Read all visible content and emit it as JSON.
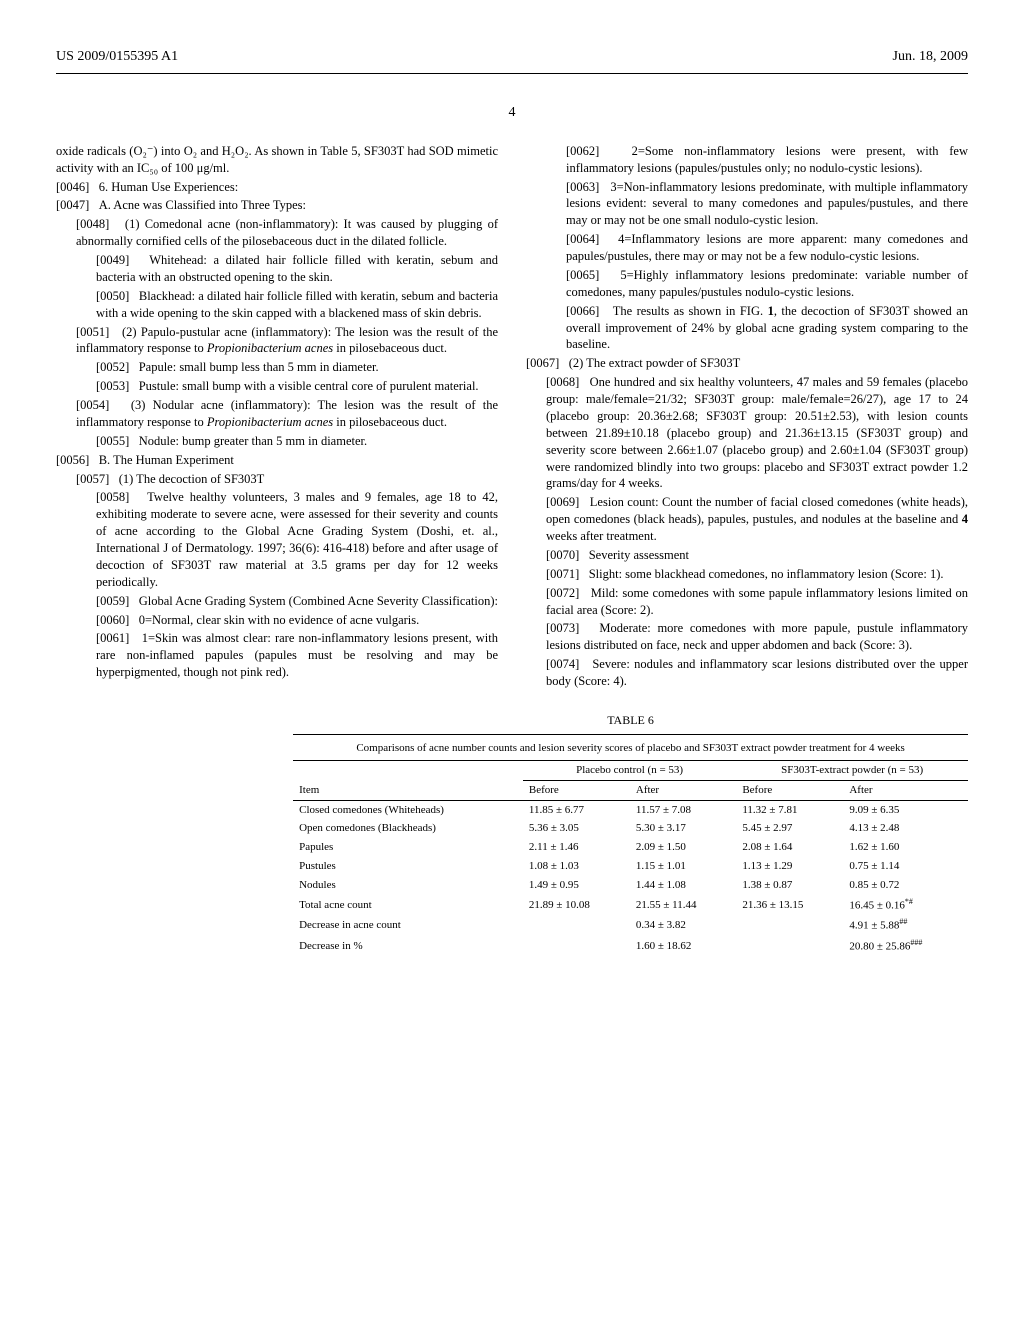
{
  "header": {
    "left": "US 2009/0155395 A1",
    "right": "Jun. 18, 2009"
  },
  "page_number": "4",
  "left_column": {
    "intro": "oxide radicals (O₂⁻) into O₂ and H₂O₂. As shown in Table 5, SF303T had SOD mimetic activity with an IC₅₀ of 100 μg/ml.",
    "p0046": "6. Human Use Experiences:",
    "p0047": "A. Acne was Classified into Three Types:",
    "p0048": "(1) Comedonal acne (non-inflammatory): It was caused by plugging of abnormally cornified cells of the pilosebaceous duct in the dilated follicle.",
    "p0049": "Whitehead: a dilated hair follicle filled with keratin, sebum and bacteria with an obstructed opening to the skin.",
    "p0050": "Blackhead: a dilated hair follicle filled with keratin, sebum and bacteria with a wide opening to the skin capped with a blackened mass of skin debris.",
    "p0051": "(2) Papulo-pustular acne (inflammatory): The lesion was the result of the inflammatory response to Propionibacterium acnes in pilosebaceous duct.",
    "p0052": "Papule: small bump less than 5 mm in diameter.",
    "p0053": "Pustule: small bump with a visible central core of purulent material.",
    "p0054": "(3) Nodular acne (inflammatory): The lesion was the result of the inflammatory response to Propionibacterium acnes in pilosebaceous duct.",
    "p0055": "Nodule: bump greater than 5 mm in diameter.",
    "p0056": "B. The Human Experiment",
    "p0057": "(1) The decoction of SF303T",
    "p0058": "Twelve healthy volunteers, 3 males and 9 females, age 18 to 42, exhibiting moderate to severe acne, were assessed for their severity and counts of acne according to the Global Acne Grading System (Doshi, et. al., International J of Dermatology. 1997; 36(6): 416-418) before and after usage of decoction of SF303T raw material at 3.5 grams per day for 12 weeks periodically.",
    "p0059": "Global Acne Grading System (Combined Acne Severity Classification):",
    "p0060": "0=Normal, clear skin with no evidence of acne vulgaris.",
    "p0061": "1=Skin was almost clear: rare non-inflammatory lesions present, with rare non-inflamed papules (papules must be resolving and may be hyperpigmented, though not pink red)."
  },
  "right_column": {
    "p0062": "2=Some non-inflammatory lesions were present, with few inflammatory lesions (papules/pustules only; no nodulo-cystic lesions).",
    "p0063": "3=Non-inflammatory lesions predominate, with multiple inflammatory lesions evident: several to many comedones and papules/pustules, and there may or may not be one small nodulo-cystic lesion.",
    "p0064": "4=Inflammatory lesions are more apparent: many comedones and papules/pustules, there may or may not be a few nodulo-cystic lesions.",
    "p0065": "5=Highly inflammatory lesions predominate: variable number of comedones, many papules/pustules nodulo-cystic lesions.",
    "p0066": "The results as shown in FIG. 1, the decoction of SF303T showed an overall improvement of 24% by global acne grading system comparing to the baseline.",
    "p0067": "(2) The extract powder of SF303T",
    "p0068": "One hundred and six healthy volunteers, 47 males and 59 females (placebo group: male/female=21/32; SF303T group: male/female=26/27), age 17 to 24 (placebo group: 20.36±2.68; SF303T group: 20.51±2.53), with lesion counts between 21.89±10.18 (placebo group) and 21.36±13.15 (SF303T group) and severity score between 2.66±1.07 (placebo group) and 2.60±1.04 (SF303T group) were randomized blindly into two groups: placebo and SF303T extract powder 1.2 grams/day for 4 weeks.",
    "p0069": "Lesion count: Count the number of facial closed comedones (white heads), open comedones (black heads), papules, pustules, and nodules at the baseline and 4 weeks after treatment.",
    "p0070": "Severity assessment",
    "p0071": "Slight: some blackhead comedones, no inflammatory lesion (Score: 1).",
    "p0072": "Mild: some comedones with some papule inflammatory lesions limited on facial area (Score: 2).",
    "p0073": "Moderate: more comedones with more papule, pustule inflammatory lesions distributed on face, neck and upper abdomen and back (Score: 3).",
    "p0074": "Severe: nodules and inflammatory scar lesions distributed over the upper body (Score: 4)."
  },
  "table": {
    "label": "TABLE 6",
    "caption": "Comparisons of acne number counts and lesion severity scores of placebo and SF303T extract powder treatment for 4 weeks",
    "group_headers": [
      "",
      "Placebo control (n = 53)",
      "SF303T-extract powder (n = 53)"
    ],
    "sub_headers": [
      "Item",
      "Before",
      "After",
      "Before",
      "After"
    ],
    "rows": [
      [
        "Closed comedones (Whiteheads)",
        "11.85 ± 6.77",
        "11.57 ± 7.08",
        "11.32 ± 7.81",
        "9.09 ± 6.35"
      ],
      [
        "Open comedones (Blackheads)",
        "5.36 ± 3.05",
        "5.30 ± 3.17",
        "5.45 ± 2.97",
        "4.13 ± 2.48"
      ],
      [
        "Papules",
        "2.11 ± 1.46",
        "2.09 ± 1.50",
        "2.08 ± 1.64",
        "1.62 ± 1.60"
      ],
      [
        "Pustules",
        "1.08 ± 1.03",
        "1.15 ± 1.01",
        "1.13 ± 1.29",
        "0.75 ± 1.14"
      ],
      [
        "Nodules",
        "1.49 ± 0.95",
        "1.44 ± 1.08",
        "1.38 ± 0.87",
        "0.85 ± 0.72"
      ],
      [
        "Total acne count",
        "21.89 ± 10.08",
        "21.55 ± 11.44",
        "21.36 ± 13.15",
        "16.45 ± 0.16*#"
      ],
      [
        "Decrease in acne count",
        "",
        "0.34 ± 3.82",
        "",
        "4.91 ± 5.88##"
      ],
      [
        "Decrease in %",
        "",
        "1.60 ± 18.62",
        "",
        "20.80 ± 25.86###"
      ]
    ]
  }
}
